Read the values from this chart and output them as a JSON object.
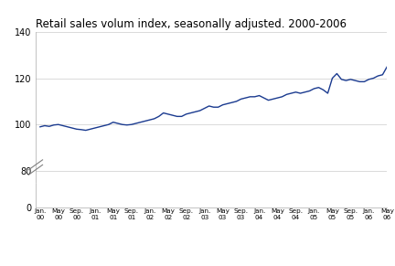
{
  "title": "Retail sales volum index, seasonally adjusted. 2000-2006",
  "line_color": "#1a3a8f",
  "line_width": 1.0,
  "background_color": "#ffffff",
  "grid_color": "#cccccc",
  "values": [
    99.0,
    99.5,
    99.2,
    99.8,
    100.0,
    99.5,
    99.0,
    98.5,
    98.0,
    97.8,
    97.5,
    98.0,
    98.5,
    99.0,
    99.5,
    100.0,
    101.0,
    100.5,
    100.0,
    99.8,
    100.0,
    100.5,
    101.0,
    101.5,
    102.0,
    102.5,
    103.5,
    105.0,
    104.5,
    104.0,
    103.5,
    103.5,
    104.5,
    105.0,
    105.5,
    106.0,
    107.0,
    108.0,
    107.5,
    107.5,
    108.5,
    109.0,
    109.5,
    110.0,
    111.0,
    111.5,
    112.0,
    112.0,
    112.5,
    111.5,
    110.5,
    111.0,
    111.5,
    112.0,
    113.0,
    113.5,
    114.0,
    113.5,
    114.0,
    114.5,
    115.5,
    116.0,
    115.0,
    113.5,
    120.0,
    122.0,
    119.5,
    119.0,
    119.5,
    119.0,
    118.5,
    118.5,
    119.5,
    120.0,
    121.0,
    121.5,
    125.0
  ],
  "x_tick_positions": [
    0,
    4,
    8,
    12,
    16,
    20,
    24,
    28,
    32,
    36,
    40,
    44,
    48,
    52,
    56,
    60,
    64,
    68,
    72,
    76
  ],
  "x_tick_labels_top": [
    "Jan.",
    "May",
    "Sep.",
    "Jan.",
    "May",
    "Sep.",
    "Jan.",
    "May",
    "Sep.",
    "Jan.",
    "May",
    "Sep.",
    "Jan.",
    "May",
    "Sep.",
    "Jan.",
    "May",
    "Sep.",
    "Jan.",
    "May"
  ],
  "x_tick_labels_bottom": [
    "00",
    "00",
    "00",
    "01",
    "01",
    "01",
    "02",
    "02",
    "02",
    "03",
    "03",
    "03",
    "04",
    "04",
    "04",
    "05",
    "05",
    "05",
    "06",
    "06"
  ],
  "upper_ylim": [
    75,
    140
  ],
  "upper_yticks": [
    80,
    100,
    120,
    140
  ],
  "lower_ylim": [
    0,
    10
  ],
  "lower_yticks": [
    0
  ],
  "title_fontsize": 8.5
}
